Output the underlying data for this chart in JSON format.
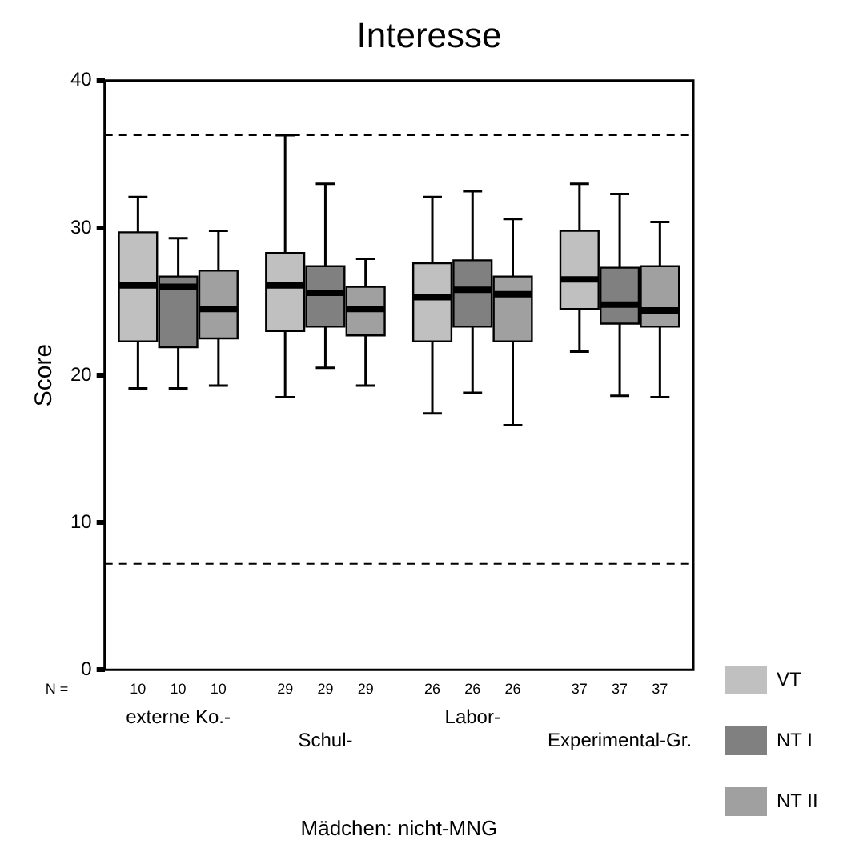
{
  "chart_data": {
    "type": "box",
    "title": "Interesse",
    "xlabel": "Mädchen: nicht-MNG",
    "ylabel": "Score",
    "categories": [
      "externe Ko.-",
      "Schul-",
      "Labor-",
      "Experimental-Gr."
    ],
    "series": [
      {
        "name": "VT",
        "color": "#c0c0c0",
        "value_labels": [
          "10",
          "29",
          "26",
          "37"
        ],
        "boxes": [
          {
            "low": 19.1,
            "q1": 22.3,
            "median": 26.1,
            "q3": 29.7,
            "high": 32.1
          },
          {
            "low": 18.5,
            "q1": 23.0,
            "median": 26.1,
            "q3": 28.3,
            "high": 36.3
          },
          {
            "low": 17.4,
            "q1": 22.3,
            "median": 25.3,
            "q3": 27.6,
            "high": 32.1
          },
          {
            "low": 21.6,
            "q1": 24.5,
            "median": 26.5,
            "q3": 29.8,
            "high": 33.0
          }
        ]
      },
      {
        "name": "NT I",
        "color": "#808080",
        "value_labels": [
          "10",
          "29",
          "26",
          "37"
        ],
        "boxes": [
          {
            "low": 19.1,
            "q1": 21.9,
            "median": 26.0,
            "q3": 26.7,
            "high": 29.3
          },
          {
            "low": 20.5,
            "q1": 23.3,
            "median": 25.6,
            "q3": 27.4,
            "high": 33.0
          },
          {
            "low": 18.8,
            "q1": 23.3,
            "median": 25.8,
            "q3": 27.8,
            "high": 32.5
          },
          {
            "low": 18.6,
            "q1": 23.5,
            "median": 24.8,
            "q3": 27.3,
            "high": 32.3
          }
        ]
      },
      {
        "name": "NT II",
        "color": "#a0a0a0",
        "value_labels": [
          "10",
          "29",
          "26",
          "37"
        ],
        "boxes": [
          {
            "low": 19.3,
            "q1": 22.5,
            "median": 24.5,
            "q3": 27.1,
            "high": 29.8
          },
          {
            "low": 19.3,
            "q1": 22.7,
            "median": 24.5,
            "q3": 26.0,
            "high": 27.9
          },
          {
            "low": 16.6,
            "q1": 22.3,
            "median": 25.5,
            "q3": 26.7,
            "high": 30.6
          },
          {
            "low": 18.5,
            "q1": 23.3,
            "median": 24.4,
            "q3": 27.4,
            "high": 30.4
          }
        ]
      }
    ],
    "ylim": [
      0,
      40
    ],
    "yticks": [
      0,
      10,
      20,
      30,
      40
    ],
    "grid": false,
    "legend": "bottom right",
    "ref_lines": [
      {
        "axis": "y",
        "value": 36.3,
        "line_style": "dashed"
      },
      {
        "axis": "y",
        "value": 7.2,
        "line_style": "dashed"
      }
    ],
    "annotations": [
      "N ="
    ]
  }
}
